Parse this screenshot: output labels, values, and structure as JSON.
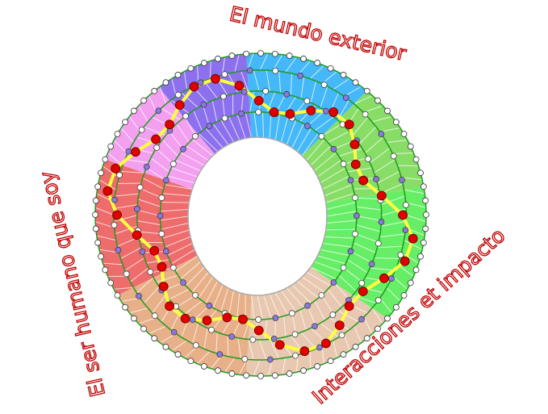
{
  "labels": {
    "top": "El mundo exterior",
    "left": "El ser humano que soy",
    "bottom_right": "Interacciones et impacto"
  },
  "colors": {
    "label_outline": "#c00000",
    "ring_line": "#1e9a1e",
    "path": "#ffff40",
    "path_node": "#e00000",
    "inner_node": "#8878e0",
    "outer_node": "#ffffff",
    "sectors": [
      "#44b8f8",
      "#88dd66",
      "#66ee66",
      "#e8c8b0",
      "#e8b088",
      "#ee6c6c",
      "#f4a0f0",
      "#8c70ee"
    ]
  }
}
